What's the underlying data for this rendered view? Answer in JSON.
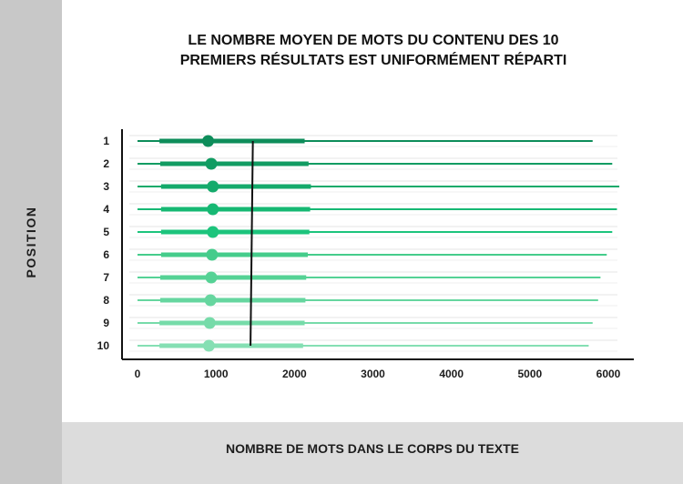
{
  "title": {
    "line1": "LE NOMBRE MOYEN DE MOTS DU CONTENU DES 10",
    "line2": "PREMIERS RÉSULTATS EST UNIFORMÉMENT RÉPARTI"
  },
  "chart_data": {
    "type": "scatter",
    "title": "LE NOMBRE MOYEN DE MOTS DU CONTENU DES 10 PREMIERS RÉSULTATS EST UNIFORMÉMENT RÉPARTI",
    "xlabel": "NOMBRE DE MOTS DANS LE CORPS DU TEXTE",
    "ylabel": "POSITION",
    "xlim": [
      0,
      6200
    ],
    "x_ticks": [
      0,
      1000,
      2000,
      3000,
      4000,
      5000,
      6000
    ],
    "categories": [
      "1",
      "2",
      "3",
      "4",
      "5",
      "6",
      "7",
      "8",
      "9",
      "10"
    ],
    "min": [
      0,
      0,
      0,
      0,
      0,
      0,
      0,
      0,
      0,
      0
    ],
    "q1": [
      280,
      290,
      300,
      300,
      300,
      300,
      290,
      290,
      280,
      280
    ],
    "median": [
      900,
      940,
      960,
      960,
      960,
      950,
      940,
      930,
      920,
      910
    ],
    "q3": [
      2130,
      2180,
      2210,
      2200,
      2190,
      2170,
      2150,
      2140,
      2130,
      2110
    ],
    "max": [
      5800,
      6050,
      6140,
      6110,
      6050,
      5980,
      5900,
      5870,
      5800,
      5750
    ],
    "average_line": {
      "x_start": 1470,
      "x_end": 1440,
      "from_position": "1",
      "to_position": "10"
    },
    "colors": [
      "#0d8d5a",
      "#119c62",
      "#14aa6b",
      "#16b873",
      "#1cc47c",
      "#45cc8b",
      "#55d295",
      "#66d69f",
      "#76dba9",
      "#85dfb3"
    ],
    "grid": true,
    "legend": "none"
  },
  "axis_labels": {
    "y": "POSITION",
    "x": "NOMBRE DE MOTS DANS LE CORPS DU TEXTE"
  }
}
